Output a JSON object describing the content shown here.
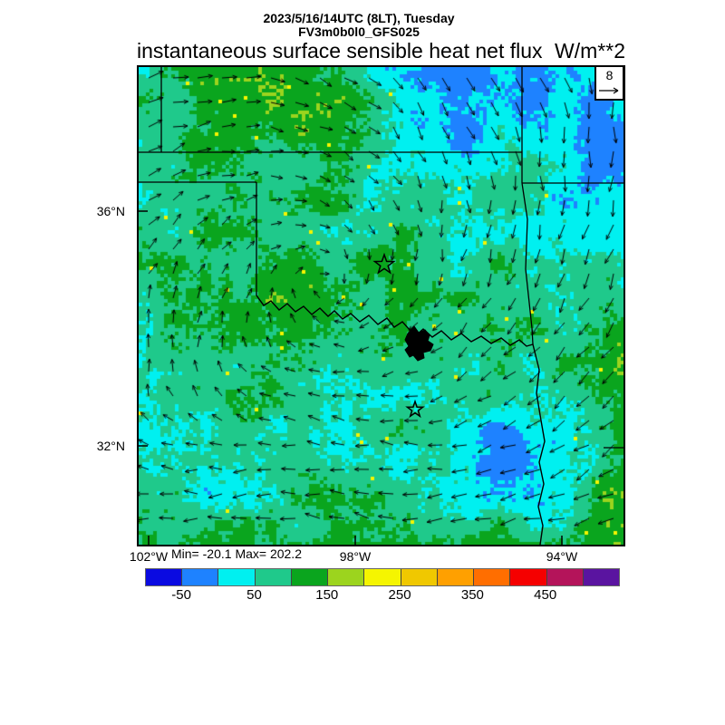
{
  "header": {
    "datetime": "2023/5/16/14UTC (8LT), Tuesday",
    "model": "FV3m0b0l0_GFS025",
    "title": "instantaneous surface sensible heat net flux",
    "units": "W/m**2"
  },
  "map": {
    "lat_labels": [
      "36°N",
      "32°N"
    ],
    "lon_labels": [
      "102°W",
      "98°W",
      "94°W"
    ],
    "wind_reference": "8"
  },
  "stats": {
    "min_label": "Min= -20.1",
    "max_label": "Max= 202.2"
  },
  "colorbar": {
    "tick_labels": [
      "-50",
      "50",
      "150",
      "250",
      "350",
      "450"
    ],
    "colors": [
      "#0a0ae1",
      "#1e82ff",
      "#00f0f0",
      "#1fc98b",
      "#0aa51e",
      "#9cd41e",
      "#f5f500",
      "#f0c800",
      "#ffa000",
      "#ff6e00",
      "#f50000",
      "#b4145a",
      "#5a14a0"
    ]
  },
  "chart_data": {
    "type": "heatmap",
    "title": "instantaneous surface sensible heat net flux",
    "units": "W/m**2",
    "datetime": "2023/5/16/14UTC (8LT), Tuesday",
    "model": "FV3m0b0l0_GFS025",
    "min": -20.1,
    "max": 202.2,
    "lat_tick_labels": [
      "36°N",
      "32°N"
    ],
    "lon_tick_labels": [
      "102°W",
      "98°W",
      "94°W"
    ],
    "colorbar_levels": [
      -100,
      -50,
      0,
      50,
      100,
      150,
      200,
      250,
      300,
      350,
      400,
      450,
      500
    ],
    "colorbar_tick_values": [
      -50,
      50,
      150,
      250,
      350,
      450
    ],
    "colorbar_colors": [
      "#0a0ae1",
      "#1e82ff",
      "#00f0f0",
      "#1fc98b",
      "#0aa51e",
      "#9cd41e",
      "#f5f500",
      "#f0c800",
      "#ffa000",
      "#ff6e00",
      "#f50000",
      "#b4145a",
      "#5a14a0"
    ],
    "wind_reference_value": 8,
    "overlays": [
      "wind vectors",
      "state boundaries",
      "rivers",
      "lake",
      "star markers"
    ],
    "dominant_value_regions": [
      {
        "area": "northeast quadrant",
        "value_range": "0 to 50"
      },
      {
        "area": "west, panhandle and central",
        "value_range": "100 to 150"
      },
      {
        "area": "southwest quadrant",
        "value_range": "50 to 100"
      },
      {
        "area": "scattered northern and east-edge patches",
        "value_range": "150 to 200"
      },
      {
        "area": "small southeast spots",
        "value_range": "-50 to 0"
      }
    ],
    "wind_pattern": {
      "west_edge": "southerly (arrows up)",
      "north_center": "westerly (arrows right)",
      "east_half": "northerly (arrows down)",
      "southwest": "easterly (arrows left)"
    }
  }
}
